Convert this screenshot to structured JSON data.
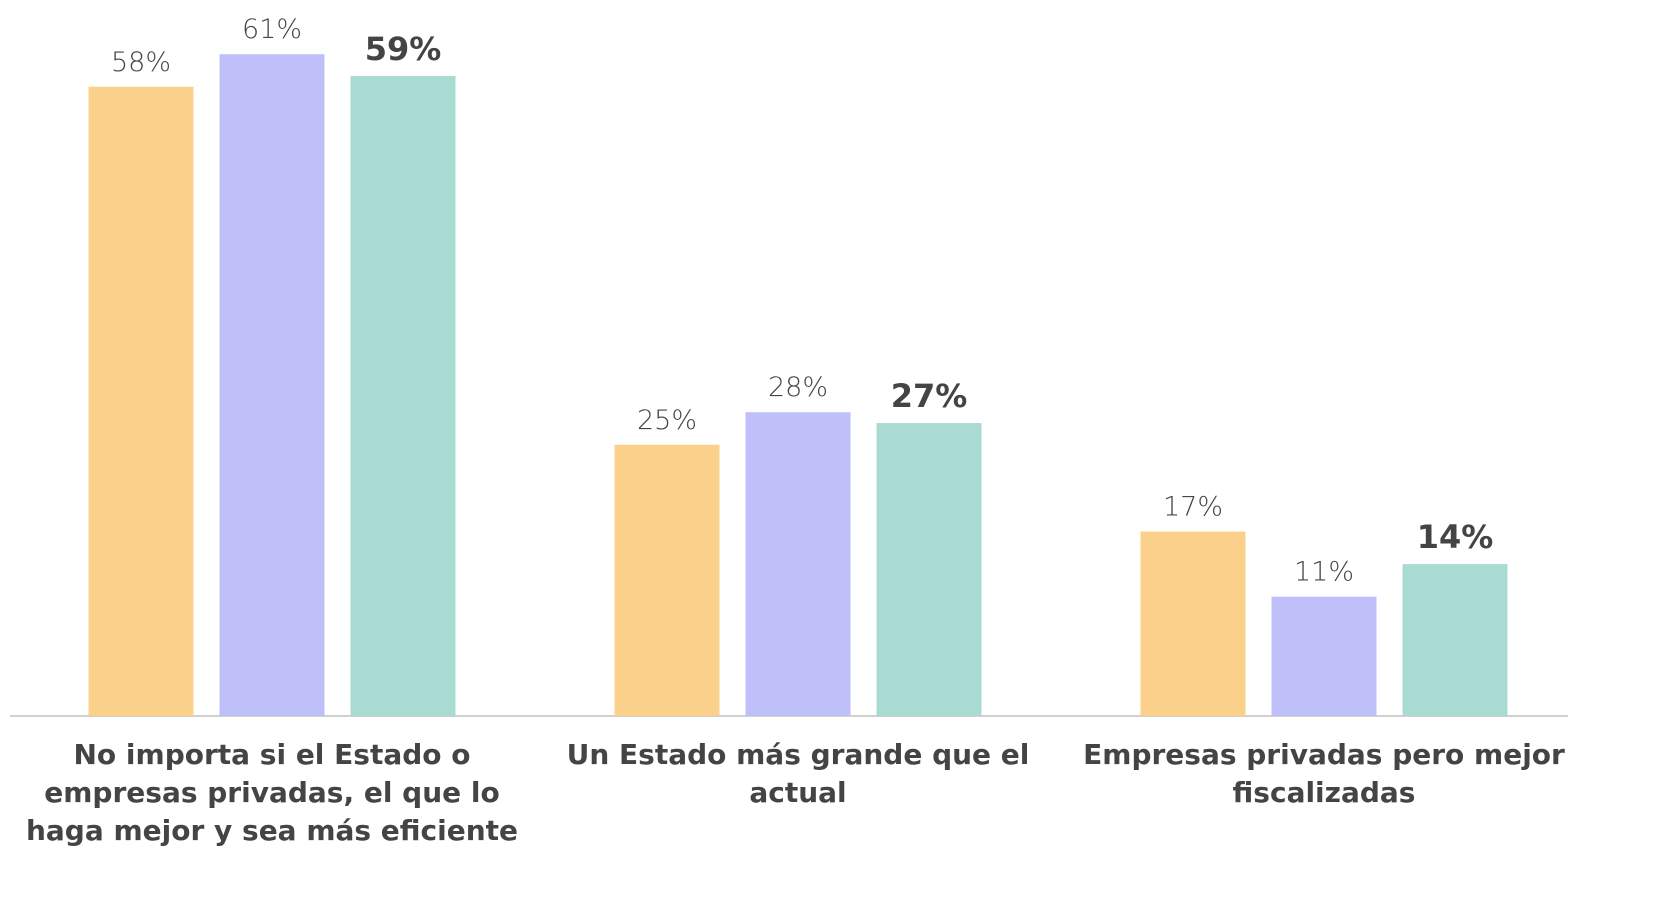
{
  "chart_data": {
    "type": "bar",
    "categories": [
      "No importa si el Estado o empresas privadas, el que lo haga mejor y sea más eficiente",
      "Un Estado más grande que el actual",
      "Empresas privadas pero mejor fiscalizadas"
    ],
    "series": [
      {
        "color": "#fbd08b",
        "values": [
          58,
          25,
          17
        ],
        "value_labels": [
          "58%",
          "25%",
          "17%"
        ]
      },
      {
        "color": "#bfbffa",
        "values": [
          61,
          28,
          11
        ],
        "value_labels": [
          "61%",
          "28%",
          "11%"
        ]
      },
      {
        "color": "#a9dbd3",
        "values": [
          59,
          27,
          14
        ],
        "value_labels": [
          "59%",
          "27%",
          "14%"
        ]
      }
    ],
    "ylim": [
      0,
      66
    ]
  }
}
